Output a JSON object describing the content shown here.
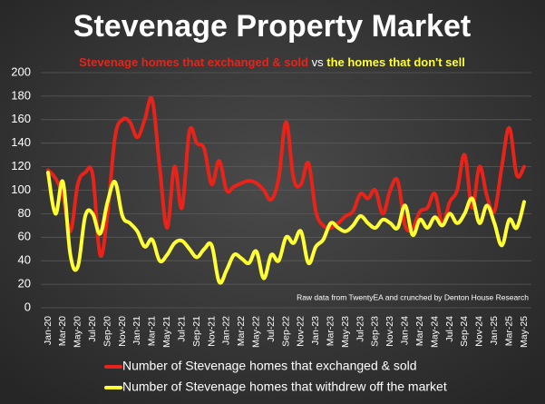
{
  "chart_data": {
    "type": "line",
    "title": "Stevenage Property Market",
    "subtitle": [
      "Stevenage homes that exchanged & sold",
      "vs",
      "the homes that don't sell"
    ],
    "annotation": "Raw data from TwentyEA and crunched by Denton House Research",
    "categories": [
      "Jan-20",
      null,
      "Mar-20",
      null,
      "May-20",
      null,
      "Jul-20",
      null,
      "Sep-20",
      null,
      "Nov-20",
      null,
      "Jan-21",
      null,
      "Mar-21",
      null,
      "May-21",
      null,
      "Jul-21",
      null,
      "Sep-21",
      null,
      "Nov-21",
      null,
      "Jan-22",
      null,
      "Mar-22",
      null,
      "May-22",
      null,
      "Jul-22",
      null,
      "Sep-22",
      null,
      "Nov-22",
      null,
      "Jan-23",
      null,
      "Mar-23",
      null,
      "May-23",
      null,
      "Jul-23",
      null,
      "Sep-23",
      null,
      "Nov-23",
      null,
      "Jan-24",
      null,
      "Mar-24",
      null,
      "May-24",
      null,
      "Jul-24",
      null,
      "Sep-24",
      null,
      "Nov-24",
      null,
      "Jan-25",
      null,
      "Mar-25",
      null,
      "May-25"
    ],
    "series": [
      {
        "name": "Number of Stevenage homes that exchanged & sold",
        "color": "#e8231a",
        "values": [
          117,
          110,
          95,
          65,
          105,
          115,
          113,
          45,
          80,
          145,
          160,
          158,
          145,
          160,
          177,
          120,
          68,
          120,
          85,
          150,
          140,
          135,
          105,
          125,
          100,
          103,
          106,
          108,
          106,
          100,
          92,
          110,
          158,
          110,
          105,
          123,
          82,
          70,
          68,
          72,
          78,
          82,
          97,
          93,
          100,
          80,
          100,
          108,
          70,
          68,
          82,
          85,
          97,
          72,
          90,
          100,
          130,
          85,
          120,
          95,
          82,
          120,
          153,
          113,
          120
        ]
      },
      {
        "name": "Number of Stevenage homes that withdrew off the market",
        "color": "#ffff33",
        "values": [
          115,
          80,
          107,
          45,
          35,
          78,
          80,
          63,
          90,
          107,
          78,
          72,
          65,
          52,
          58,
          40,
          45,
          55,
          57,
          50,
          43,
          50,
          53,
          22,
          32,
          45,
          42,
          38,
          48,
          25,
          45,
          40,
          60,
          55,
          65,
          38,
          52,
          58,
          72,
          68,
          65,
          70,
          78,
          72,
          68,
          75,
          72,
          68,
          87,
          62,
          75,
          68,
          77,
          70,
          80,
          72,
          80,
          93,
          72,
          87,
          72,
          53,
          75,
          68,
          90
        ]
      }
    ],
    "ylim": [
      0,
      200
    ],
    "yticks": [
      0,
      20,
      40,
      60,
      80,
      100,
      120,
      140,
      160,
      180,
      200
    ],
    "grid": true
  }
}
